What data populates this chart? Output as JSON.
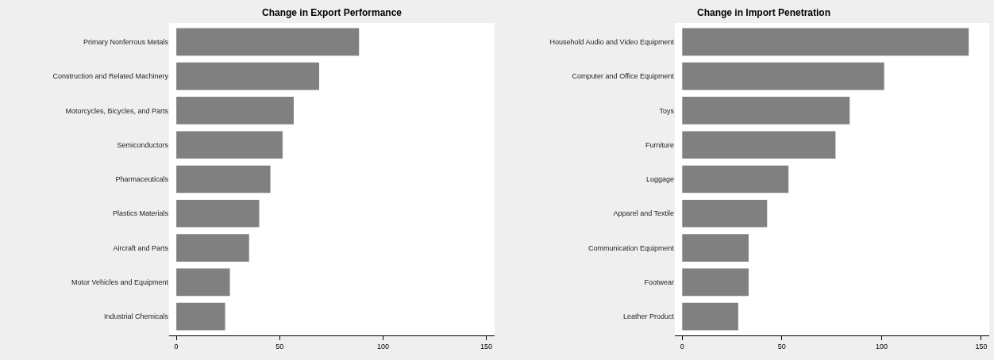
{
  "chart_data": [
    {
      "type": "bar",
      "orientation": "horizontal",
      "title": "Change in Export Performance",
      "categories": [
        "Primary Nonferrous Metals",
        "Construction and Related Machinery",
        "Motorcycles, Bicycles, and Parts",
        "Semiconductors",
        "Pharmaceuticals",
        "Plastics Materials",
        "Aircraft and Parts",
        "Motor Vehicles and Equipment",
        "Industrial Chemicals"
      ],
      "values": [
        88.4,
        69.1,
        56.8,
        51.4,
        45.5,
        40.1,
        35.2,
        25.9,
        23.6
      ],
      "color": "#808080",
      "xlim": [
        -3.5,
        154
      ],
      "xticks": [
        0,
        50,
        100,
        150
      ]
    },
    {
      "type": "bar",
      "orientation": "horizontal",
      "title": "Change in Import Penetration",
      "categories": [
        "Household Audio and Video Equipment",
        "Computer and Office Equipment",
        "Toys",
        "Furniture",
        "Luggage",
        "Apparel and Textile",
        "Communication Equipment",
        "Footwear",
        "Leather Product"
      ],
      "values": [
        143.7,
        101.3,
        84.0,
        76.9,
        53.3,
        42.6,
        33.3,
        33.3,
        28.1
      ],
      "color": "#808080",
      "xlim": [
        -3.7,
        154
      ],
      "xticks": [
        0,
        50,
        100,
        150
      ]
    }
  ]
}
